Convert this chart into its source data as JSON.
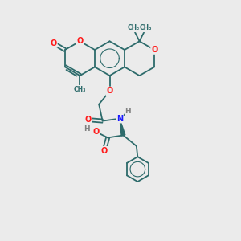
{
  "background_color": "#ebebeb",
  "bond_color": "#2d6b6b",
  "O_color": "#ff1a1a",
  "N_color": "#1a1aff",
  "H_color": "#808080",
  "C_color": "#2d6b6b",
  "figsize": [
    3.0,
    3.0
  ],
  "dpi": 100,
  "xlim": [
    0,
    10
  ],
  "ylim": [
    0,
    10
  ]
}
